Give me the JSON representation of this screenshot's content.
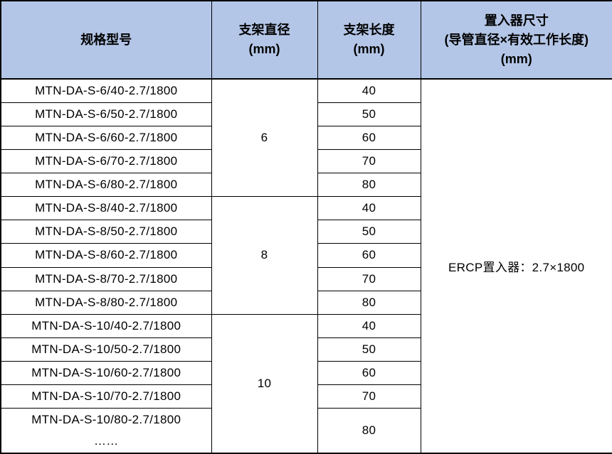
{
  "colors": {
    "header_bg": "#B4C6E7",
    "border": "#000000",
    "text": "#000000",
    "body_bg": "#FFFFFF"
  },
  "table": {
    "headers": {
      "model": {
        "line1": "规格型号"
      },
      "diameter": {
        "line1": "支架直径",
        "line2": "(mm)"
      },
      "length": {
        "line1": "支架长度",
        "line2": "(mm)"
      },
      "inserter": {
        "line1": "置入器尺寸",
        "line2": "(导管直径×有效工作长度)",
        "line3": "(mm)"
      }
    },
    "groups": [
      {
        "diameter": "6",
        "rows": [
          {
            "model": "MTN-DA-S-6/40-2.7/1800",
            "length": "40"
          },
          {
            "model": "MTN-DA-S-6/50-2.7/1800",
            "length": "50"
          },
          {
            "model": "MTN-DA-S-6/60-2.7/1800",
            "length": "60"
          },
          {
            "model": "MTN-DA-S-6/70-2.7/1800",
            "length": "70"
          },
          {
            "model": "MTN-DA-S-6/80-2.7/1800",
            "length": "80"
          }
        ]
      },
      {
        "diameter": "8",
        "rows": [
          {
            "model": "MTN-DA-S-8/40-2.7/1800",
            "length": "40"
          },
          {
            "model": "MTN-DA-S-8/50-2.7/1800",
            "length": "50"
          },
          {
            "model": "MTN-DA-S-8/60-2.7/1800",
            "length": "60"
          },
          {
            "model": "MTN-DA-S-8/70-2.7/1800",
            "length": "70"
          },
          {
            "model": "MTN-DA-S-8/80-2.7/1800",
            "length": "80"
          }
        ]
      },
      {
        "diameter": "10",
        "rows": [
          {
            "model": "MTN-DA-S-10/40-2.7/1800",
            "length": "40"
          },
          {
            "model": "MTN-DA-S-10/50-2.7/1800",
            "length": "50"
          },
          {
            "model": "MTN-DA-S-10/60-2.7/1800",
            "length": "60"
          },
          {
            "model": "MTN-DA-S-10/70-2.7/1800",
            "length": "70"
          },
          {
            "model": "MTN-DA-S-10/80-2.7/1800",
            "length": "80",
            "ellipsis": "……"
          }
        ]
      }
    ],
    "inserter_value": "ERCP置入器：2.7×1800"
  }
}
